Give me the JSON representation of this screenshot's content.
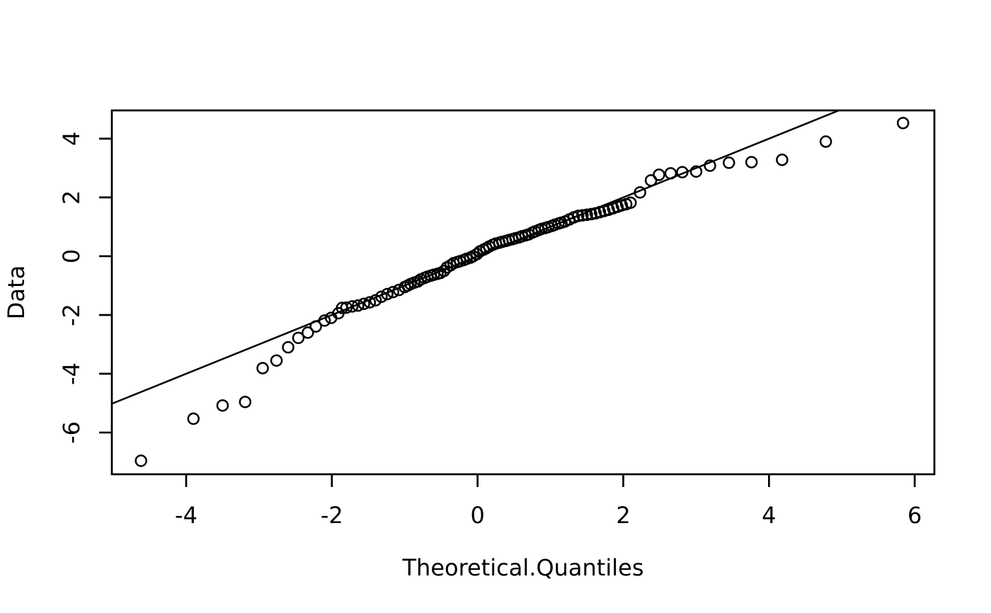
{
  "chart_data": {
    "type": "scatter",
    "title": "",
    "xlabel": "Theoretical.Quantiles",
    "ylabel": "Data",
    "x_ticks": [
      -4,
      -2,
      0,
      2,
      4,
      6
    ],
    "y_ticks": [
      -6,
      -4,
      -2,
      0,
      2,
      4
    ],
    "xlim": [
      -5.02,
      6.27
    ],
    "ylim": [
      -7.42,
      4.96
    ],
    "grid": false,
    "legend_position": "none",
    "marker": {
      "shape": "open-circle",
      "radius_px": 7.5,
      "stroke_px": 2.5,
      "color": "#000000"
    },
    "reference_line": {
      "slope": 1,
      "intercept": 0,
      "color": "#000000"
    },
    "points": [
      [
        -4.62,
        -6.96
      ],
      [
        -3.9,
        -5.53
      ],
      [
        -3.5,
        -5.08
      ],
      [
        -3.19,
        -4.96
      ],
      [
        -2.95,
        -3.81
      ],
      [
        -2.76,
        -3.55
      ],
      [
        -2.6,
        -3.1
      ],
      [
        -2.46,
        -2.78
      ],
      [
        -2.33,
        -2.6
      ],
      [
        -2.22,
        -2.39
      ],
      [
        -2.1,
        -2.19
      ],
      [
        -2.01,
        -2.1
      ],
      [
        -1.91,
        -1.94
      ],
      [
        -1.86,
        -1.76
      ],
      [
        -1.8,
        -1.75
      ],
      [
        -1.72,
        -1.71
      ],
      [
        -1.64,
        -1.68
      ],
      [
        -1.56,
        -1.62
      ],
      [
        -1.48,
        -1.57
      ],
      [
        -1.4,
        -1.5
      ],
      [
        -1.32,
        -1.38
      ],
      [
        -1.24,
        -1.29
      ],
      [
        -1.16,
        -1.22
      ],
      [
        -1.08,
        -1.15
      ],
      [
        -1.0,
        -1.05
      ],
      [
        -0.96,
        -1.0
      ],
      [
        -0.92,
        -0.95
      ],
      [
        -0.87,
        -0.9
      ],
      [
        -0.82,
        -0.86
      ],
      [
        -0.78,
        -0.79
      ],
      [
        -0.73,
        -0.74
      ],
      [
        -0.69,
        -0.7
      ],
      [
        -0.64,
        -0.66
      ],
      [
        -0.6,
        -0.63
      ],
      [
        -0.55,
        -0.6
      ],
      [
        -0.51,
        -0.57
      ],
      [
        -0.46,
        -0.5
      ],
      [
        -0.42,
        -0.38
      ],
      [
        -0.37,
        -0.31
      ],
      [
        -0.33,
        -0.24
      ],
      [
        -0.28,
        -0.2
      ],
      [
        -0.24,
        -0.17
      ],
      [
        -0.19,
        -0.13
      ],
      [
        -0.15,
        -0.09
      ],
      [
        -0.1,
        -0.05
      ],
      [
        -0.06,
        0.0
      ],
      [
        -0.01,
        0.07
      ],
      [
        0.03,
        0.16
      ],
      [
        0.08,
        0.22
      ],
      [
        0.12,
        0.27
      ],
      [
        0.16,
        0.33
      ],
      [
        0.21,
        0.39
      ],
      [
        0.25,
        0.43
      ],
      [
        0.3,
        0.46
      ],
      [
        0.34,
        0.49
      ],
      [
        0.39,
        0.52
      ],
      [
        0.43,
        0.55
      ],
      [
        0.48,
        0.58
      ],
      [
        0.52,
        0.61
      ],
      [
        0.57,
        0.64
      ],
      [
        0.61,
        0.68
      ],
      [
        0.66,
        0.71
      ],
      [
        0.7,
        0.74
      ],
      [
        0.75,
        0.8
      ],
      [
        0.79,
        0.84
      ],
      [
        0.84,
        0.89
      ],
      [
        0.88,
        0.93
      ],
      [
        0.93,
        0.96
      ],
      [
        0.97,
        0.99
      ],
      [
        1.02,
        1.03
      ],
      [
        1.06,
        1.07
      ],
      [
        1.11,
        1.11
      ],
      [
        1.15,
        1.14
      ],
      [
        1.2,
        1.18
      ],
      [
        1.26,
        1.25
      ],
      [
        1.32,
        1.32
      ],
      [
        1.38,
        1.37
      ],
      [
        1.44,
        1.39
      ],
      [
        1.5,
        1.41
      ],
      [
        1.56,
        1.43
      ],
      [
        1.62,
        1.46
      ],
      [
        1.68,
        1.5
      ],
      [
        1.74,
        1.54
      ],
      [
        1.8,
        1.58
      ],
      [
        1.86,
        1.63
      ],
      [
        1.92,
        1.68
      ],
      [
        1.98,
        1.73
      ],
      [
        2.04,
        1.77
      ],
      [
        2.1,
        1.82
      ],
      [
        2.23,
        2.17
      ],
      [
        2.38,
        2.58
      ],
      [
        2.49,
        2.77
      ],
      [
        2.65,
        2.82
      ],
      [
        2.81,
        2.86
      ],
      [
        3.0,
        2.88
      ],
      [
        3.19,
        3.08
      ],
      [
        3.45,
        3.18
      ],
      [
        3.76,
        3.2
      ],
      [
        4.18,
        3.28
      ],
      [
        4.78,
        3.9
      ],
      [
        5.84,
        4.53
      ]
    ]
  },
  "style": {
    "foreground": "#000000",
    "background": "#ffffff"
  }
}
